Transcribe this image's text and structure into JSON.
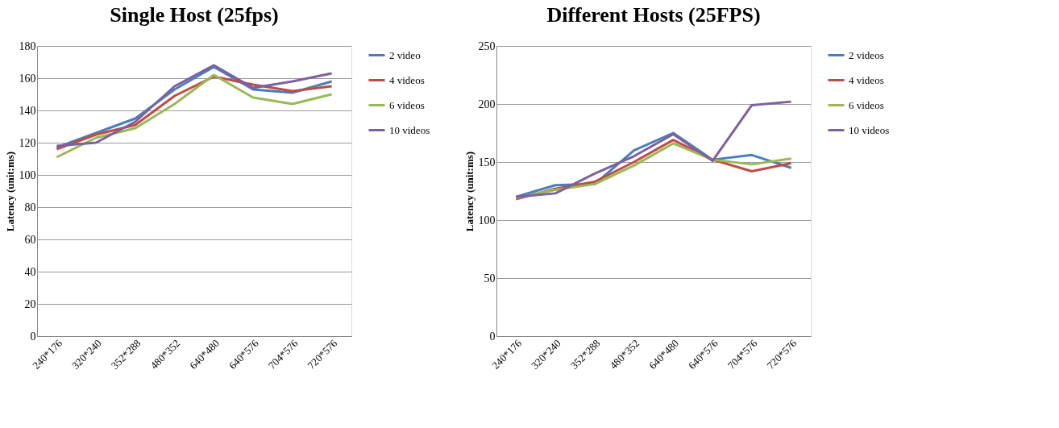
{
  "chart_data": [
    {
      "type": "line",
      "title": "Single Host (25fps)",
      "ylabel": "Latency (unit:ms)",
      "categories": [
        "240*176",
        "320*240",
        "352*288",
        "480*352",
        "640*480",
        "640*576",
        "704*576",
        "720*576"
      ],
      "series": [
        {
          "name": "2 video",
          "color": "#4a7ebb",
          "values": [
            117,
            126,
            135,
            153,
            167,
            153,
            151,
            158
          ]
        },
        {
          "name": "4 videos",
          "color": "#be4b48",
          "values": [
            116,
            125,
            131,
            149,
            161,
            156,
            152,
            155
          ]
        },
        {
          "name": "6 videos",
          "color": "#98b954",
          "values": [
            111,
            123,
            129,
            144,
            162,
            148,
            144,
            150
          ]
        },
        {
          "name": "10 videos",
          "color": "#7d60a0",
          "values": [
            118,
            120,
            133,
            155,
            168,
            154,
            158,
            163
          ]
        }
      ],
      "ylim": [
        0,
        180
      ],
      "yticks": [
        0,
        20,
        40,
        60,
        80,
        100,
        120,
        140,
        160,
        180
      ],
      "grid": "y",
      "legend": "right",
      "marker": "none",
      "line_style": "solid"
    },
    {
      "type": "line",
      "title": "Different Hosts (25FPS)",
      "ylabel": "Latency (unit:ms)",
      "categories": [
        "240*176",
        "320*240",
        "352*288",
        "480*352",
        "640*480",
        "640*576",
        "704*576",
        "720*576"
      ],
      "series": [
        {
          "name": "2 videos",
          "color": "#4a7ebb",
          "values": [
            120,
            130,
            131,
            160,
            175,
            152,
            156,
            145
          ]
        },
        {
          "name": "4 videos",
          "color": "#be4b48",
          "values": [
            118,
            127,
            133,
            150,
            169,
            152,
            142,
            149
          ]
        },
        {
          "name": "6 videos",
          "color": "#98b954",
          "values": [
            119,
            126,
            131,
            147,
            166,
            152,
            148,
            153
          ]
        },
        {
          "name": "10 videos",
          "color": "#7d60a0",
          "values": [
            120,
            123,
            140,
            155,
            174,
            151,
            199,
            202
          ]
        }
      ],
      "ylim": [
        0,
        250
      ],
      "yticks": [
        0,
        50,
        100,
        150,
        200,
        250
      ],
      "grid": "y",
      "legend": "right",
      "marker": "none",
      "line_style": "solid"
    }
  ]
}
